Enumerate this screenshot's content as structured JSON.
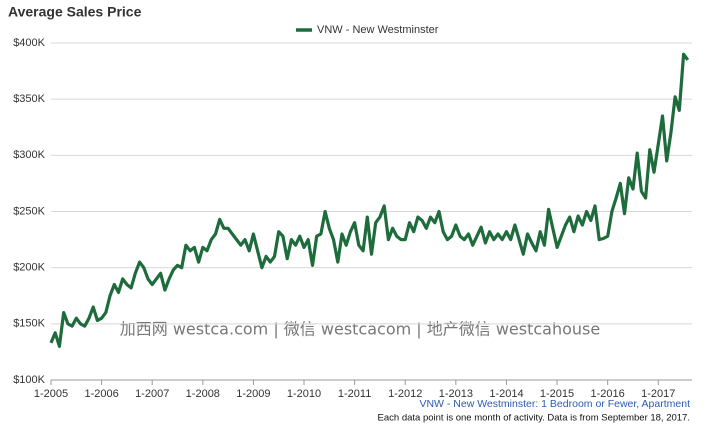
{
  "chart_data": {
    "type": "line",
    "title": "Average Sales Price",
    "x": [
      "2005-01",
      "2005-02",
      "2005-03",
      "2005-04",
      "2005-05",
      "2005-06",
      "2005-07",
      "2005-08",
      "2005-09",
      "2005-10",
      "2005-11",
      "2005-12",
      "2006-01",
      "2006-02",
      "2006-03",
      "2006-04",
      "2006-05",
      "2006-06",
      "2006-07",
      "2006-08",
      "2006-09",
      "2006-10",
      "2006-11",
      "2006-12",
      "2007-01",
      "2007-02",
      "2007-03",
      "2007-04",
      "2007-05",
      "2007-06",
      "2007-07",
      "2007-08",
      "2007-09",
      "2007-10",
      "2007-11",
      "2007-12",
      "2008-01",
      "2008-02",
      "2008-03",
      "2008-04",
      "2008-05",
      "2008-06",
      "2008-07",
      "2008-08",
      "2008-09",
      "2008-10",
      "2008-11",
      "2008-12",
      "2009-01",
      "2009-02",
      "2009-03",
      "2009-04",
      "2009-05",
      "2009-06",
      "2009-07",
      "2009-08",
      "2009-09",
      "2009-10",
      "2009-11",
      "2009-12",
      "2010-01",
      "2010-02",
      "2010-03",
      "2010-04",
      "2010-05",
      "2010-06",
      "2010-07",
      "2010-08",
      "2010-09",
      "2010-10",
      "2010-11",
      "2010-12",
      "2011-01",
      "2011-02",
      "2011-03",
      "2011-04",
      "2011-05",
      "2011-06",
      "2011-07",
      "2011-08",
      "2011-09",
      "2011-10",
      "2011-11",
      "2011-12",
      "2012-01",
      "2012-02",
      "2012-03",
      "2012-04",
      "2012-05",
      "2012-06",
      "2012-07",
      "2012-08",
      "2012-09",
      "2012-10",
      "2012-11",
      "2012-12",
      "2013-01",
      "2013-02",
      "2013-03",
      "2013-04",
      "2013-05",
      "2013-06",
      "2013-07",
      "2013-08",
      "2013-09",
      "2013-10",
      "2013-11",
      "2013-12",
      "2014-01",
      "2014-02",
      "2014-03",
      "2014-04",
      "2014-05",
      "2014-06",
      "2014-07",
      "2014-08",
      "2014-09",
      "2014-10",
      "2014-11",
      "2014-12",
      "2015-01",
      "2015-02",
      "2015-03",
      "2015-04",
      "2015-05",
      "2015-06",
      "2015-07",
      "2015-08",
      "2015-09",
      "2015-10",
      "2015-11",
      "2015-12",
      "2016-01",
      "2016-02",
      "2016-03",
      "2016-04",
      "2016-05",
      "2016-06",
      "2016-07",
      "2016-08",
      "2016-09",
      "2016-10",
      "2016-11",
      "2016-12",
      "2017-01",
      "2017-02",
      "2017-03",
      "2017-04",
      "2017-05",
      "2017-06",
      "2017-07",
      "2017-08"
    ],
    "series": [
      {
        "name": "VNW - New Westminster",
        "color": "#1e6b3c",
        "values": [
          133000,
          142000,
          130000,
          160000,
          150000,
          148000,
          155000,
          150000,
          148000,
          155000,
          165000,
          153000,
          155000,
          160000,
          175000,
          185000,
          178000,
          190000,
          185000,
          182000,
          195000,
          205000,
          200000,
          190000,
          185000,
          190000,
          195000,
          180000,
          190000,
          198000,
          202000,
          200000,
          220000,
          215000,
          218000,
          205000,
          218000,
          215000,
          225000,
          230000,
          243000,
          235000,
          235000,
          230000,
          225000,
          220000,
          225000,
          215000,
          230000,
          215000,
          200000,
          210000,
          205000,
          210000,
          232000,
          228000,
          208000,
          225000,
          220000,
          228000,
          218000,
          225000,
          202000,
          228000,
          230000,
          250000,
          235000,
          225000,
          205000,
          230000,
          220000,
          232000,
          240000,
          220000,
          215000,
          245000,
          212000,
          240000,
          245000,
          255000,
          225000,
          235000,
          228000,
          225000,
          225000,
          240000,
          232000,
          245000,
          242000,
          235000,
          245000,
          240000,
          250000,
          232000,
          225000,
          228000,
          238000,
          228000,
          225000,
          230000,
          220000,
          228000,
          236000,
          222000,
          232000,
          225000,
          230000,
          225000,
          232000,
          225000,
          238000,
          225000,
          212000,
          230000,
          222000,
          215000,
          232000,
          220000,
          252000,
          235000,
          218000,
          228000,
          238000,
          245000,
          232000,
          246000,
          238000,
          250000,
          242000,
          255000,
          225000,
          226000,
          228000,
          250000,
          262000,
          275000,
          248000,
          280000,
          270000,
          302000,
          268000,
          262000,
          305000,
          285000,
          310000,
          335000,
          295000,
          320000,
          352000,
          340000,
          390000,
          385000
        ]
      }
    ],
    "xlim": [
      "2005-01",
      "2017-09"
    ],
    "xticks": [
      {
        "value": "2005-01",
        "label": "1-2005"
      },
      {
        "value": "2006-01",
        "label": "1-2006"
      },
      {
        "value": "2007-01",
        "label": "1-2007"
      },
      {
        "value": "2008-01",
        "label": "1-2008"
      },
      {
        "value": "2009-01",
        "label": "1-2009"
      },
      {
        "value": "2010-01",
        "label": "1-2010"
      },
      {
        "value": "2011-01",
        "label": "1-2011"
      },
      {
        "value": "2012-01",
        "label": "1-2012"
      },
      {
        "value": "2013-01",
        "label": "1-2013"
      },
      {
        "value": "2014-01",
        "label": "1-2014"
      },
      {
        "value": "2015-01",
        "label": "1-2015"
      },
      {
        "value": "2016-01",
        "label": "1-2016"
      },
      {
        "value": "2017-01",
        "label": "1-2017"
      }
    ],
    "ylim": [
      100000,
      400000
    ],
    "yticks": [
      {
        "value": 100000,
        "label": "$100K"
      },
      {
        "value": 150000,
        "label": "$150K"
      },
      {
        "value": 200000,
        "label": "$200K"
      },
      {
        "value": 250000,
        "label": "$250K"
      },
      {
        "value": 300000,
        "label": "$300K"
      },
      {
        "value": 350000,
        "label": "$350K"
      },
      {
        "value": 400000,
        "label": "$400K"
      }
    ],
    "grid": true,
    "legend": "top",
    "annotations": [
      "加西网 westca.com | 微信 westcacom | 地产微信 westcahouse",
      "VNW - New Westminster: 1 Bedroom or Fewer, Apartment",
      "Each data point is one month of activity. Data is from September 18, 2017."
    ]
  }
}
